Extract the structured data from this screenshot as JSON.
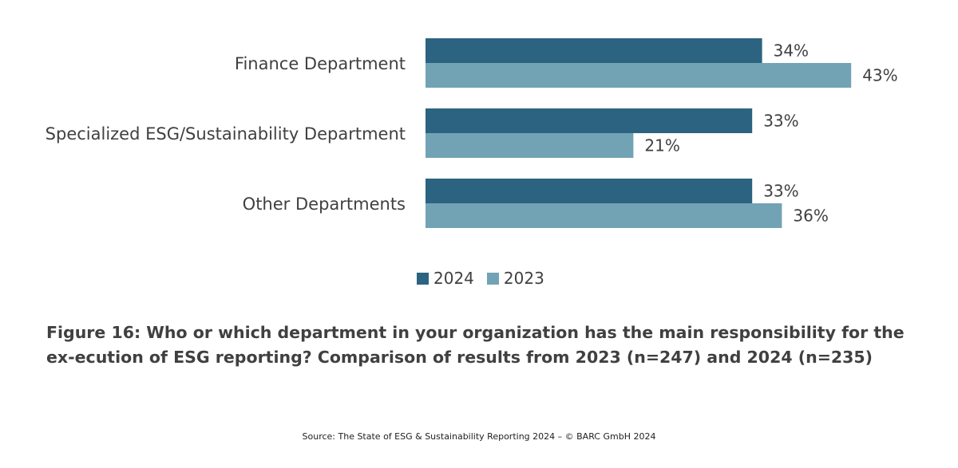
{
  "chart_data": {
    "type": "bar",
    "orientation": "horizontal",
    "categories": [
      "Finance Department",
      "Specialized ESG/Sustainability Department",
      "Other Departments"
    ],
    "series": [
      {
        "name": "2024",
        "values": [
          34,
          33,
          33
        ],
        "color": "#2c6380"
      },
      {
        "name": "2023",
        "values": [
          43,
          21,
          36
        ],
        "color": "#72a3b5"
      }
    ],
    "value_suffix": "%",
    "xlim": [
      0,
      100
    ],
    "grid": false,
    "legend_position": "bottom-center"
  },
  "caption": "Figure 16: Who or which department in your organization has the main responsibility for the ex-ecution of ESG reporting? Comparison of results from 2023 (n=247) and 2024 (n=235)",
  "source": "Source: The State of ESG & Sustainability Reporting 2024 – © BARC GmbH 2024"
}
